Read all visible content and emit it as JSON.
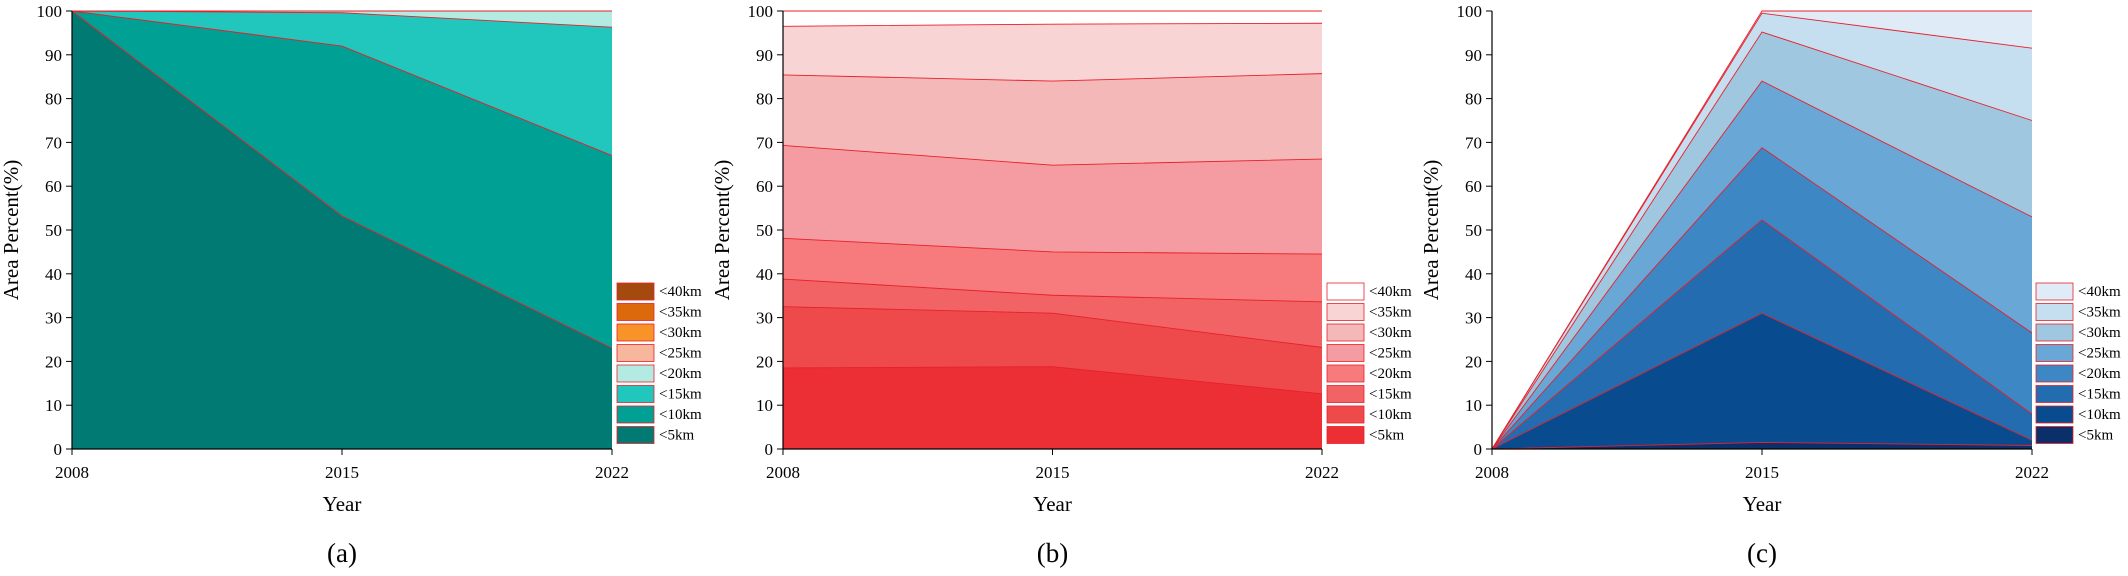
{
  "chart_data": [
    {
      "type": "area",
      "stacked": true,
      "panel_label": "(a)",
      "xlabel": "Year",
      "ylabel": "Area Percent(%)",
      "x": [
        "2008",
        "2015",
        "2022"
      ],
      "ylim": [
        0,
        100
      ],
      "yticks": [
        "0",
        "10",
        "20",
        "30",
        "40",
        "50",
        "60",
        "70",
        "80",
        "90",
        "100"
      ],
      "legend_position": "right",
      "series": [
        {
          "name": "<5km",
          "color": "#007A72",
          "values": [
            100,
            53.2,
            23.0
          ]
        },
        {
          "name": "<10km",
          "color": "#00A095",
          "values": [
            0,
            38.8,
            44.0
          ]
        },
        {
          "name": "<15km",
          "color": "#21C7BD",
          "values": [
            0,
            7.6,
            29.3
          ]
        },
        {
          "name": "<20km",
          "color": "#B3EBE2",
          "values": [
            0,
            0.4,
            3.7
          ]
        },
        {
          "name": "<25km",
          "color": "#F6B79C",
          "values": [
            0,
            0,
            0
          ]
        },
        {
          "name": "<30km",
          "color": "#F79328",
          "values": [
            0,
            0,
            0
          ]
        },
        {
          "name": "<35km",
          "color": "#DC6A0C",
          "values": [
            0,
            0,
            0
          ]
        },
        {
          "name": "<40km",
          "color": "#A54A0E",
          "values": [
            0,
            0,
            0
          ]
        }
      ]
    },
    {
      "type": "area",
      "stacked": true,
      "panel_label": "(b)",
      "xlabel": "Year",
      "ylabel": "Area Percent(%)",
      "x": [
        "2008",
        "2015",
        "2022"
      ],
      "ylim": [
        0,
        100
      ],
      "yticks": [
        "0",
        "10",
        "20",
        "30",
        "40",
        "50",
        "60",
        "70",
        "80",
        "90",
        "100"
      ],
      "legend_position": "right",
      "series": [
        {
          "name": "<5km",
          "color": "#EC2F35",
          "values": [
            18.5,
            18.8,
            12.6
          ]
        },
        {
          "name": "<10km",
          "color": "#EE4A4C",
          "values": [
            14.0,
            12.2,
            10.6
          ]
        },
        {
          "name": "<15km",
          "color": "#F16364",
          "values": [
            6.3,
            4.1,
            10.4
          ]
        },
        {
          "name": "<20km",
          "color": "#F77A7C",
          "values": [
            9.3,
            9.9,
            10.9
          ]
        },
        {
          "name": "<25km",
          "color": "#F49CA2",
          "values": [
            21.2,
            19.8,
            21.7
          ]
        },
        {
          "name": "<30km",
          "color": "#F5B8B8",
          "values": [
            16.1,
            19.2,
            19.5
          ]
        },
        {
          "name": "<35km",
          "color": "#F8D4D4",
          "values": [
            11.1,
            13.0,
            11.5
          ]
        },
        {
          "name": "<40km",
          "color": "#FFFFFF",
          "values": [
            3.5,
            3.0,
            2.8
          ]
        }
      ]
    },
    {
      "type": "area",
      "stacked": true,
      "panel_label": "(c)",
      "xlabel": "Year",
      "ylabel": "Area Percent(%)",
      "x": [
        "2008",
        "2015",
        "2022"
      ],
      "ylim": [
        0,
        100
      ],
      "yticks": [
        "0",
        "10",
        "20",
        "30",
        "40",
        "50",
        "60",
        "70",
        "80",
        "90",
        "100"
      ],
      "legend_position": "right",
      "series": [
        {
          "name": "<5km",
          "color": "#0B2F6B",
          "values": [
            0,
            1.5,
            0.8
          ]
        },
        {
          "name": "<10km",
          "color": "#084C8F",
          "values": [
            0,
            29.5,
            1.2
          ]
        },
        {
          "name": "<15km",
          "color": "#236CB0",
          "values": [
            0,
            21.3,
            6.0
          ]
        },
        {
          "name": "<20km",
          "color": "#3D87C4",
          "values": [
            0,
            16.5,
            18.5
          ]
        },
        {
          "name": "<25km",
          "color": "#69A7D6",
          "values": [
            0,
            15.2,
            26.5
          ]
        },
        {
          "name": "<30km",
          "color": "#9FC7E0",
          "values": [
            0,
            11.2,
            22.0
          ]
        },
        {
          "name": "<35km",
          "color": "#C5DEF0",
          "values": [
            0,
            4.3,
            16.5
          ]
        },
        {
          "name": "<40km",
          "color": "#DFEBF7",
          "values": [
            0,
            0.5,
            8.5
          ]
        }
      ]
    }
  ]
}
